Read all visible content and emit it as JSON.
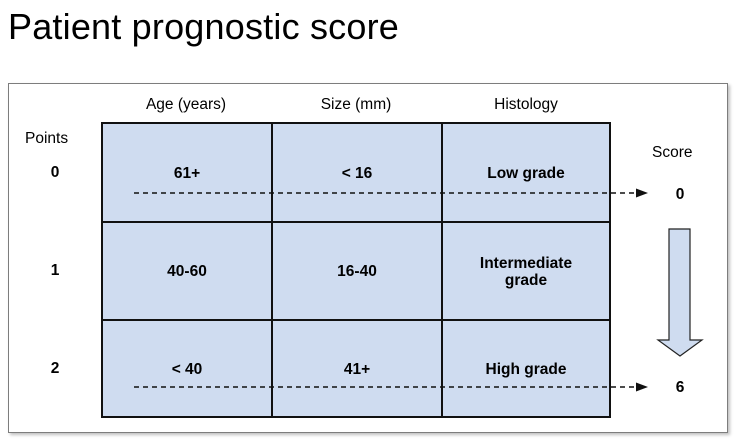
{
  "title": "Patient prognostic score",
  "columns": [
    "Age (years)",
    "Size (mm)",
    "Histology"
  ],
  "points_label": "Points",
  "score_label": "Score",
  "rows": [
    {
      "points": "0",
      "age": "61+",
      "size": "< 16",
      "histology": "Low grade"
    },
    {
      "points": "1",
      "age": "40-60",
      "size": "16-40",
      "histology": "Intermediate grade"
    },
    {
      "points": "2",
      "age": "< 40",
      "size": "41+",
      "histology": "High grade"
    }
  ],
  "score_min": "0",
  "score_max": "6",
  "colors": {
    "cell_fill": "#cfdcf0",
    "border": "#111111",
    "arrow_fill": "#cfdcf0"
  }
}
